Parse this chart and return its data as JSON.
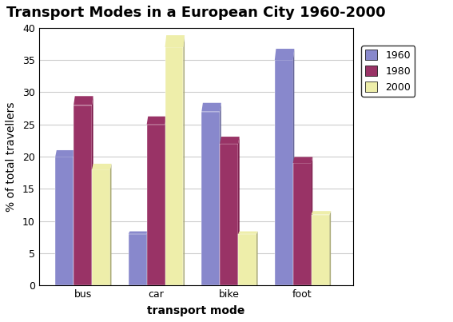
{
  "title": "Transport Modes in a European City 1960-2000",
  "categories": [
    "bus",
    "car",
    "bike",
    "foot"
  ],
  "xlabel": "transport mode",
  "ylabel": "% of total travellers",
  "series": {
    "1960": [
      20,
      8,
      27,
      35
    ],
    "1980": [
      28,
      25,
      22,
      19
    ],
    "2000": [
      18,
      37,
      8,
      11
    ]
  },
  "colors": {
    "1960": "#8888CC",
    "1980": "#993366",
    "2000": "#EEEEAA"
  },
  "shadow_colors": {
    "1960": "#666699",
    "1980": "#771144",
    "2000": "#AAAA77"
  },
  "ylim": [
    0,
    40
  ],
  "yticks": [
    0,
    5,
    10,
    15,
    20,
    25,
    30,
    35,
    40
  ],
  "legend_labels": [
    "1960",
    "1980",
    "2000"
  ],
  "bar_width": 0.25,
  "depth": 0.07,
  "background_color": "#FFFFFF",
  "plot_bg_color": "#FFFFFF",
  "title_fontsize": 13,
  "axis_label_fontsize": 10,
  "tick_fontsize": 9,
  "legend_fontsize": 9,
  "grid_color": "#CCCCCC"
}
